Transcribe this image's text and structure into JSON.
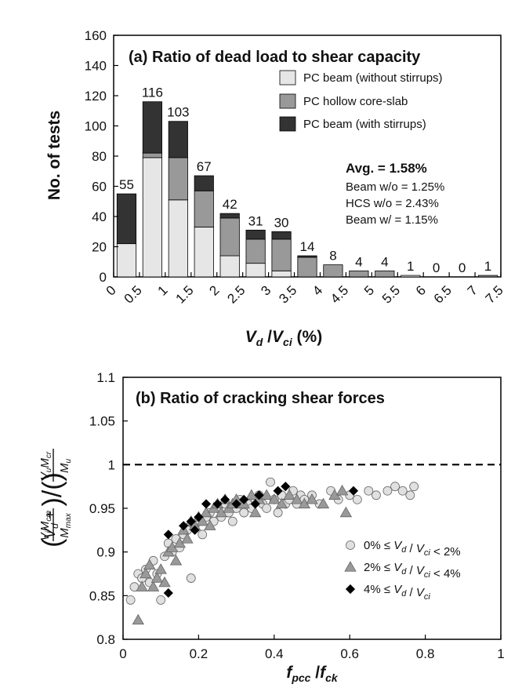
{
  "chart_data": [
    {
      "type": "bar",
      "title": "(a) Ratio of dead load to shear capacity",
      "xlabel": "V_d / V_ci (%)",
      "ylabel": "No. of tests",
      "ylim": [
        0,
        160
      ],
      "yticks": [
        "0",
        "20",
        "40",
        "60",
        "80",
        "100",
        "120",
        "140",
        "160"
      ],
      "xticks": [
        "0",
        "0.5",
        "1",
        "1.5",
        "2",
        "2.5",
        "3",
        "3.5",
        "4",
        "4.5",
        "5",
        "5.5",
        "6",
        "6.5",
        "7",
        "7.5"
      ],
      "categories": [
        "0-0.5",
        "0.5-1",
        "1-1.5",
        "1.5-2",
        "2-2.5",
        "2.5-3",
        "3-3.5",
        "3.5-4",
        "4-4.5",
        "4.5-5",
        "5-5.5",
        "5.5-6",
        "6-6.5",
        "6.5-7",
        "7-7.5"
      ],
      "stacked": true,
      "series": [
        {
          "name": "PC beam (without stirrups)",
          "color": "#e6e6e6",
          "values": [
            22,
            79,
            51,
            33,
            14,
            9,
            4,
            0,
            0,
            0,
            0,
            1,
            0,
            0,
            0
          ]
        },
        {
          "name": "PC hollow core-slab",
          "color": "#999999",
          "values": [
            0,
            3,
            28,
            24,
            25,
            16,
            21,
            13,
            8,
            4,
            4,
            0,
            0,
            0,
            1
          ]
        },
        {
          "name": "PC beam (with stirrups)",
          "color": "#333333",
          "values": [
            33,
            34,
            24,
            10,
            3,
            6,
            5,
            1,
            0,
            0,
            0,
            0,
            0,
            0,
            0
          ]
        }
      ],
      "totals": [
        "55",
        "116",
        "103",
        "67",
        "42",
        "31",
        "30",
        "14",
        "8",
        "4",
        "4",
        "1",
        "0",
        "0",
        "1"
      ],
      "legend": "top-right",
      "annotations": [
        "Avg. = 1.58%",
        "Beam w/o = 1.25%",
        "HCS w/o = 2.43%",
        "Beam w/ = 1.15%"
      ]
    },
    {
      "type": "scatter",
      "title": "(b) Ratio of cracking shear forces",
      "xlabel": "f_pcc / f_ck",
      "ylabel": "(V_d + V_i M_cre / M_max) / (V_u M_cr / M_u)",
      "xlim": [
        0,
        1
      ],
      "ylim": [
        0.8,
        1.1
      ],
      "xticks": [
        "0",
        "0.2",
        "0.4",
        "0.6",
        "0.8",
        "1"
      ],
      "yticks": [
        "0.8",
        "0.85",
        "0.9",
        "0.95",
        "1",
        "1.05",
        "1.1"
      ],
      "reference_line": {
        "y": 1,
        "style": "dashed"
      },
      "legend": "bottom-right",
      "legend_labels": [
        "0% ≤ V_d / V_ci < 2%",
        "2% ≤ V_d / V_ci < 4%",
        "4% ≤ V_d / V_ci"
      ],
      "series": [
        {
          "name": "0% ≤ V_d / V_ci < 2%",
          "marker": "circle",
          "color": "#e0e0e0",
          "points": [
            [
              0.02,
              0.845
            ],
            [
              0.03,
              0.86
            ],
            [
              0.04,
              0.875
            ],
            [
              0.05,
              0.87
            ],
            [
              0.06,
              0.88
            ],
            [
              0.07,
              0.865
            ],
            [
              0.08,
              0.89
            ],
            [
              0.09,
              0.875
            ],
            [
              0.1,
              0.845
            ],
            [
              0.11,
              0.895
            ],
            [
              0.12,
              0.91
            ],
            [
              0.13,
              0.9
            ],
            [
              0.14,
              0.915
            ],
            [
              0.15,
              0.905
            ],
            [
              0.16,
              0.92
            ],
            [
              0.17,
              0.925
            ],
            [
              0.18,
              0.87
            ],
            [
              0.19,
              0.93
            ],
            [
              0.2,
              0.935
            ],
            [
              0.21,
              0.92
            ],
            [
              0.22,
              0.94
            ],
            [
              0.23,
              0.945
            ],
            [
              0.24,
              0.935
            ],
            [
              0.25,
              0.95
            ],
            [
              0.26,
              0.94
            ],
            [
              0.27,
              0.955
            ],
            [
              0.28,
              0.945
            ],
            [
              0.29,
              0.935
            ],
            [
              0.3,
              0.95
            ],
            [
              0.31,
              0.96
            ],
            [
              0.32,
              0.945
            ],
            [
              0.33,
              0.955
            ],
            [
              0.34,
              0.95
            ],
            [
              0.35,
              0.96
            ],
            [
              0.36,
              0.965
            ],
            [
              0.37,
              0.955
            ],
            [
              0.38,
              0.95
            ],
            [
              0.39,
              0.98
            ],
            [
              0.4,
              0.96
            ],
            [
              0.41,
              0.945
            ],
            [
              0.42,
              0.965
            ],
            [
              0.43,
              0.955
            ],
            [
              0.44,
              0.96
            ],
            [
              0.45,
              0.97
            ],
            [
              0.46,
              0.955
            ],
            [
              0.47,
              0.965
            ],
            [
              0.48,
              0.96
            ],
            [
              0.5,
              0.965
            ],
            [
              0.52,
              0.955
            ],
            [
              0.55,
              0.97
            ],
            [
              0.57,
              0.96
            ],
            [
              0.6,
              0.965
            ],
            [
              0.62,
              0.96
            ],
            [
              0.65,
              0.97
            ],
            [
              0.67,
              0.965
            ],
            [
              0.7,
              0.97
            ],
            [
              0.72,
              0.975
            ],
            [
              0.74,
              0.97
            ],
            [
              0.76,
              0.965
            ],
            [
              0.77,
              0.975
            ]
          ]
        },
        {
          "name": "2% ≤ V_d / V_ci < 4%",
          "marker": "triangle",
          "color": "#999999",
          "points": [
            [
              0.04,
              0.822
            ],
            [
              0.05,
              0.86
            ],
            [
              0.06,
              0.875
            ],
            [
              0.07,
              0.885
            ],
            [
              0.08,
              0.86
            ],
            [
              0.09,
              0.87
            ],
            [
              0.1,
              0.88
            ],
            [
              0.11,
              0.865
            ],
            [
              0.12,
              0.9
            ],
            [
              0.13,
              0.905
            ],
            [
              0.14,
              0.89
            ],
            [
              0.15,
              0.91
            ],
            [
              0.16,
              0.925
            ],
            [
              0.17,
              0.915
            ],
            [
              0.18,
              0.935
            ],
            [
              0.19,
              0.93
            ],
            [
              0.2,
              0.94
            ],
            [
              0.21,
              0.935
            ],
            [
              0.22,
              0.945
            ],
            [
              0.23,
              0.93
            ],
            [
              0.24,
              0.95
            ],
            [
              0.25,
              0.955
            ],
            [
              0.26,
              0.945
            ],
            [
              0.27,
              0.96
            ],
            [
              0.28,
              0.95
            ],
            [
              0.29,
              0.955
            ],
            [
              0.3,
              0.96
            ],
            [
              0.32,
              0.955
            ],
            [
              0.34,
              0.965
            ],
            [
              0.35,
              0.945
            ],
            [
              0.36,
              0.96
            ],
            [
              0.38,
              0.965
            ],
            [
              0.4,
              0.96
            ],
            [
              0.42,
              0.955
            ],
            [
              0.44,
              0.965
            ],
            [
              0.46,
              0.96
            ],
            [
              0.48,
              0.955
            ],
            [
              0.5,
              0.96
            ],
            [
              0.53,
              0.955
            ],
            [
              0.56,
              0.965
            ],
            [
              0.58,
              0.97
            ],
            [
              0.59,
              0.945
            ]
          ]
        },
        {
          "name": "4% ≤ V_d / V_ci",
          "marker": "diamond",
          "color": "#000000",
          "points": [
            [
              0.12,
              0.853
            ],
            [
              0.12,
              0.92
            ],
            [
              0.16,
              0.93
            ],
            [
              0.18,
              0.935
            ],
            [
              0.19,
              0.925
            ],
            [
              0.2,
              0.94
            ],
            [
              0.22,
              0.955
            ],
            [
              0.25,
              0.955
            ],
            [
              0.27,
              0.96
            ],
            [
              0.3,
              0.955
            ],
            [
              0.32,
              0.96
            ],
            [
              0.35,
              0.955
            ],
            [
              0.36,
              0.965
            ],
            [
              0.41,
              0.97
            ],
            [
              0.43,
              0.975
            ],
            [
              0.61,
              0.97
            ]
          ]
        }
      ]
    }
  ]
}
